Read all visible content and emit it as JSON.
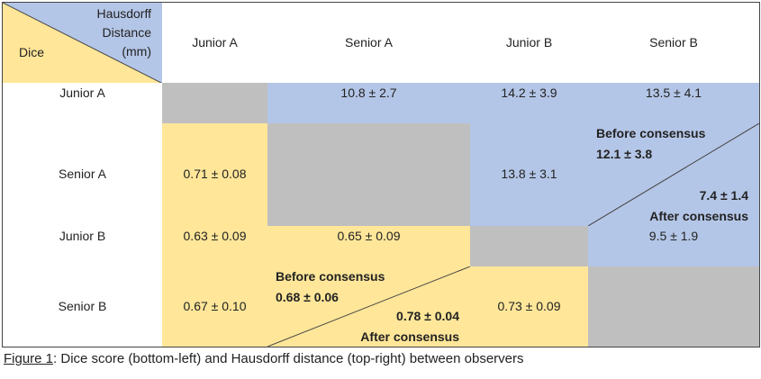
{
  "header": {
    "corner_top": "Hausdorff Distance (mm)",
    "corner_bottom": "Dice",
    "columns": [
      "Junior A",
      "Senior A",
      "Junior B",
      "Senior B"
    ]
  },
  "rows": [
    {
      "label": "Junior A",
      "cells": [
        null,
        "10.8 ± 2.7",
        "14.2 ± 3.9",
        "13.5 ± 4.1"
      ]
    },
    {
      "label": "Senior A",
      "cells": [
        "0.71 ± 0.08",
        null,
        "13.8 ± 3.1",
        {
          "before_label": "Before consensus",
          "before": "12.1 ± 3.8",
          "after": "7.4 ± 1.4",
          "after_label": "After consensus"
        }
      ]
    },
    {
      "label": "Junior B",
      "cells": [
        "0.63 ± 0.09",
        "0.65 ± 0.09",
        null,
        "9.5 ± 1.9"
      ]
    },
    {
      "label": "Senior B",
      "cells": [
        "0.67 ± 0.10",
        {
          "before_label": "Before consensus",
          "before": "0.68 ± 0.06",
          "after": "0.78 ± 0.04",
          "after_label": "After consensus"
        },
        "0.73 ± 0.09",
        null
      ]
    }
  ],
  "caption": {
    "label": "Figure 1",
    "text": ": Dice score (bottom-left) and Hausdorff distance (top-right) between observers"
  }
}
